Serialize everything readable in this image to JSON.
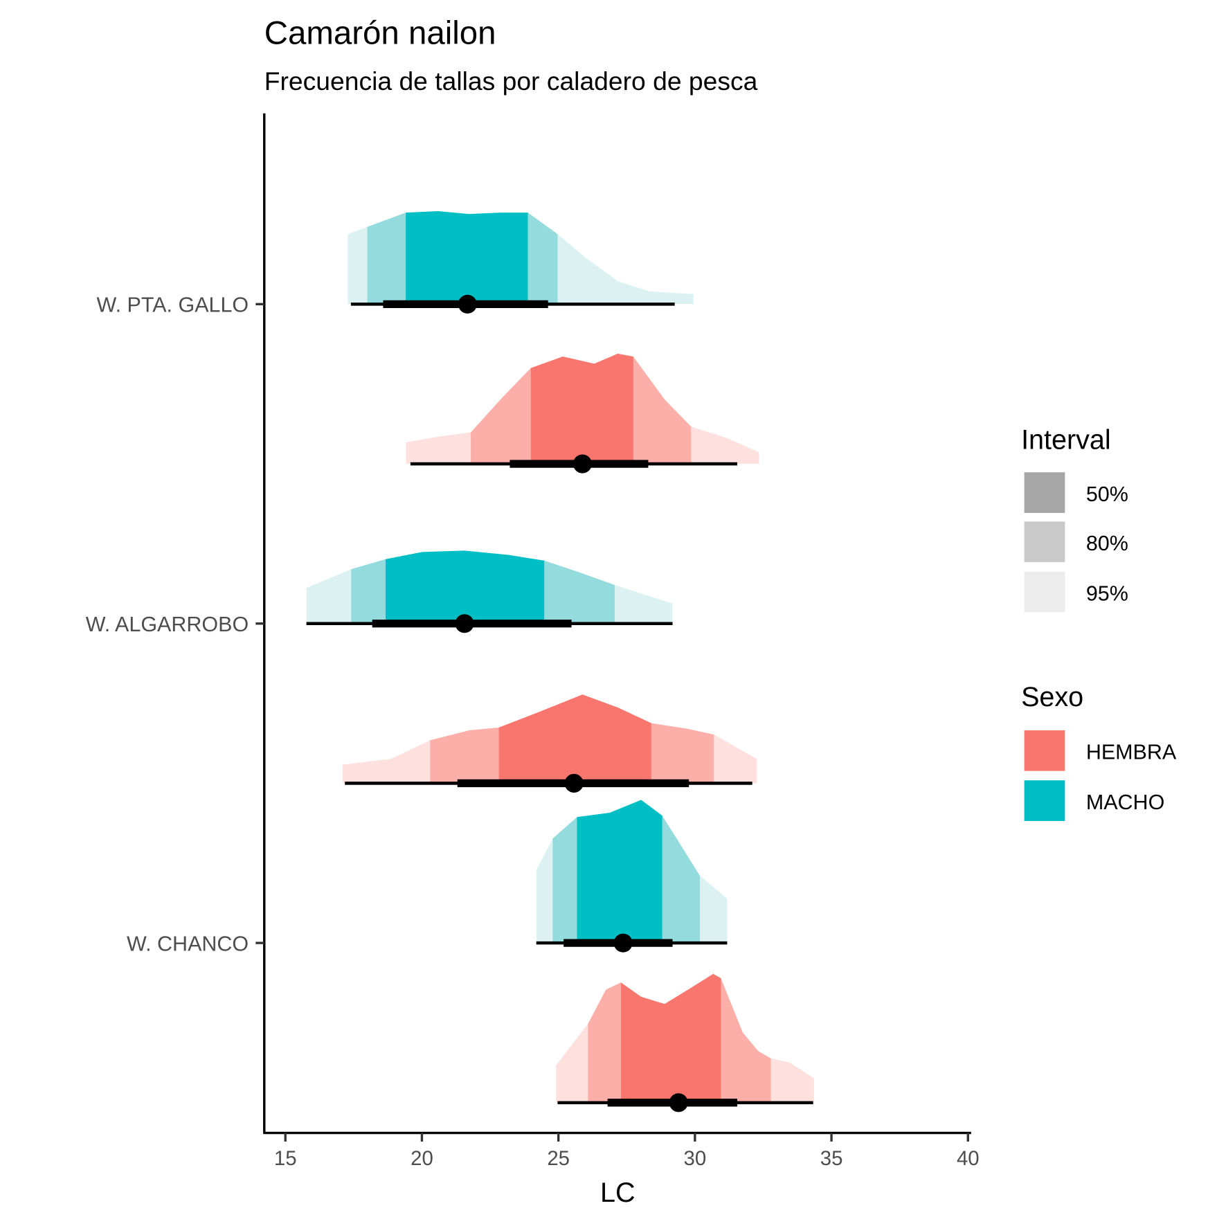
{
  "chart_data": {
    "type": "area",
    "subtype": "halfeye density with interval",
    "title": "Camarón nailon",
    "subtitle": "Frecuencia de tallas por caladero de pesca",
    "xlabel": "LC",
    "ylabel": "",
    "xlim": [
      14.3,
      40.1
    ],
    "xticks": [
      "15",
      "20",
      "25",
      "30",
      "35",
      "40"
    ],
    "xtick_values": [
      15,
      20,
      25,
      30,
      35,
      40
    ],
    "categories": [
      "W. CHANCO",
      "W. ALGARROBO",
      "W. PTA. GALLO"
    ],
    "grid": false,
    "legend_position": "right",
    "legends": {
      "interval": {
        "title": "Interval",
        "items": [
          "50%",
          "80%",
          "95%"
        ],
        "colors": [
          "#a6a6a6",
          "#c9c9c9",
          "#ececec"
        ]
      },
      "sexo": {
        "title": "Sexo",
        "items": [
          "HEMBRA",
          "MACHO"
        ],
        "colors": [
          "#F8766D",
          "#00BFC4"
        ]
      }
    },
    "palette": {
      "HEMBRA": [
        "#F8766D",
        "#FCAFA8",
        "#FEE1DE"
      ],
      "MACHO": [
        "#00BFC4",
        "#93DBDD",
        "#DCF2F2"
      ]
    },
    "series": [
      {
        "category": "W. PTA. GALLO",
        "sexo": "MACHO",
        "pos": 3,
        "bands": [
          17.29,
          18.0,
          19.41,
          23.88,
          24.97,
          29.95
        ],
        "interval_95": [
          17.4,
          29.26
        ],
        "interval_66": [
          18.58,
          24.62
        ],
        "median": 21.67,
        "density_x": [
          17.29,
          18.0,
          19.41,
          20.59,
          21.73,
          22.88,
          23.88,
          24.97,
          26.03,
          27.18,
          28.32,
          29.95
        ],
        "density_y": [
          0.49,
          0.54,
          0.64,
          0.65,
          0.63,
          0.64,
          0.64,
          0.49,
          0.32,
          0.16,
          0.09,
          0.07
        ]
      },
      {
        "category": "W. PTA. GALLO",
        "sexo": "HEMBRA",
        "pos": 2.5,
        "bands": [
          19.41,
          21.79,
          23.99,
          27.74,
          29.86,
          32.35
        ],
        "interval_95": [
          19.58,
          31.55
        ],
        "interval_66": [
          23.22,
          28.29
        ],
        "median": 25.88,
        "density_x": [
          19.41,
          20.59,
          21.79,
          22.88,
          23.99,
          25.16,
          26.31,
          27.17,
          27.74,
          28.89,
          29.86,
          31.18,
          32.35
        ],
        "density_y": [
          0.15,
          0.19,
          0.22,
          0.45,
          0.67,
          0.75,
          0.7,
          0.77,
          0.75,
          0.45,
          0.26,
          0.18,
          0.08
        ]
      },
      {
        "category": "W. ALGARROBO",
        "sexo": "MACHO",
        "pos": 2,
        "bands": [
          15.77,
          17.41,
          18.67,
          24.48,
          27.06,
          29.18
        ],
        "interval_95": [
          15.77,
          29.18
        ],
        "interval_66": [
          18.18,
          25.48
        ],
        "median": 21.56,
        "density_x": [
          15.77,
          17.41,
          18.67,
          20.01,
          21.56,
          23.16,
          24.48,
          25.74,
          27.06,
          28.03,
          29.18
        ],
        "density_y": [
          0.25,
          0.38,
          0.45,
          0.5,
          0.51,
          0.48,
          0.44,
          0.36,
          0.27,
          0.21,
          0.14
        ]
      },
      {
        "category": "W. ALGARROBO",
        "sexo": "HEMBRA",
        "pos": 1.5,
        "bands": [
          17.09,
          20.3,
          22.82,
          28.4,
          30.69,
          32.27
        ],
        "interval_95": [
          17.18,
          32.1
        ],
        "interval_66": [
          21.3,
          29.78
        ],
        "median": 25.57,
        "density_x": [
          17.09,
          18.87,
          20.3,
          21.73,
          22.82,
          24.31,
          25.88,
          27.17,
          28.4,
          29.75,
          30.69,
          32.27
        ],
        "density_y": [
          0.13,
          0.17,
          0.3,
          0.37,
          0.39,
          0.5,
          0.62,
          0.53,
          0.42,
          0.38,
          0.34,
          0.17
        ]
      },
      {
        "category": "W. CHANCO",
        "sexo": "MACHO",
        "pos": 1,
        "bands": [
          24.19,
          24.79,
          25.68,
          28.8,
          30.18,
          31.18
        ],
        "interval_95": [
          24.19,
          31.18
        ],
        "interval_66": [
          25.19,
          29.18
        ],
        "median": 27.37,
        "density_x": [
          24.19,
          24.79,
          25.68,
          26.88,
          28.03,
          28.8,
          29.46,
          30.18,
          31.18
        ],
        "density_y": [
          0.51,
          0.73,
          0.88,
          0.91,
          1.0,
          0.89,
          0.69,
          0.47,
          0.31
        ]
      },
      {
        "category": "W. CHANCO",
        "sexo": "HEMBRA",
        "pos": 0.5,
        "bands": [
          24.91,
          26.08,
          27.29,
          30.95,
          32.78,
          34.36
        ],
        "interval_95": [
          24.97,
          34.33
        ],
        "interval_66": [
          26.8,
          31.55
        ],
        "median": 29.4,
        "density_x": [
          24.91,
          26.08,
          26.74,
          27.29,
          28.03,
          28.89,
          29.75,
          30.67,
          30.95,
          31.75,
          32.32,
          32.78,
          33.47,
          34.36
        ],
        "density_y": [
          0.26,
          0.55,
          0.79,
          0.84,
          0.74,
          0.69,
          0.79,
          0.9,
          0.87,
          0.49,
          0.36,
          0.31,
          0.28,
          0.17
        ]
      }
    ]
  }
}
